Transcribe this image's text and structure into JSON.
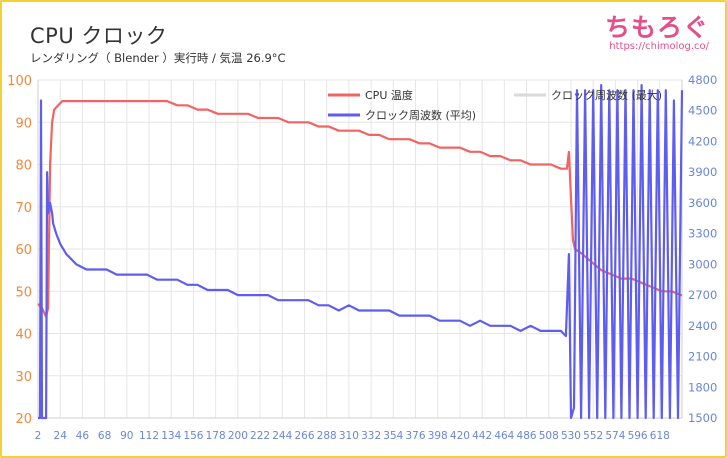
{
  "header": {
    "title": "CPU クロック",
    "subtitle": "レンダリング（ Blender ）実行時 / 気温 26.9°C"
  },
  "watermark": {
    "logo": "ちもろぐ",
    "url": "https://chimolog.co/"
  },
  "colors": {
    "temp": "#f26363",
    "clock_avg": "#5f5cf0",
    "clock_max": "#d9d9d9",
    "left_axis": "#f0893c",
    "right_axis": "#6a86d6",
    "grid": "#e6e6e6"
  },
  "chart_data": {
    "type": "line",
    "xlim": [
      2,
      640
    ],
    "x_ticks": [
      2,
      24,
      46,
      68,
      90,
      112,
      134,
      156,
      178,
      200,
      222,
      244,
      266,
      288,
      310,
      332,
      354,
      376,
      398,
      420,
      442,
      464,
      486,
      508,
      530,
      552,
      574,
      596,
      618
    ],
    "y_left": {
      "label": "",
      "ylim": [
        20,
        100
      ],
      "ticks": [
        20,
        30,
        40,
        50,
        60,
        70,
        80,
        90,
        100
      ]
    },
    "y_right": {
      "label": "",
      "ylim": [
        1500,
        4800
      ],
      "ticks": [
        1500,
        1800,
        2100,
        2400,
        2700,
        3000,
        3300,
        3600,
        3900,
        4200,
        4500,
        4800
      ]
    },
    "legend_position": "top-right",
    "grid": true,
    "series": [
      {
        "name": "CPU 温度",
        "axis": "left",
        "x": [
          2,
          6,
          10,
          12,
          14,
          16,
          18,
          22,
          26,
          30,
          40,
          50,
          60,
          70,
          80,
          90,
          100,
          110,
          120,
          130,
          140,
          150,
          160,
          170,
          180,
          190,
          200,
          210,
          220,
          230,
          240,
          250,
          260,
          270,
          280,
          290,
          300,
          310,
          320,
          330,
          340,
          350,
          360,
          370,
          380,
          390,
          400,
          410,
          420,
          430,
          440,
          450,
          460,
          470,
          480,
          490,
          500,
          510,
          520,
          526,
          528,
          530,
          532,
          534,
          540,
          550,
          560,
          570,
          580,
          590,
          600,
          610,
          620,
          630,
          640
        ],
        "values": [
          47,
          46,
          44,
          46,
          80,
          90,
          93,
          94,
          95,
          95,
          95,
          95,
          95,
          95,
          95,
          95,
          95,
          95,
          95,
          95,
          94,
          94,
          93,
          93,
          92,
          92,
          92,
          92,
          91,
          91,
          91,
          90,
          90,
          90,
          89,
          89,
          88,
          88,
          88,
          87,
          87,
          86,
          86,
          86,
          85,
          85,
          84,
          84,
          84,
          83,
          83,
          82,
          82,
          81,
          81,
          80,
          80,
          80,
          79,
          79,
          83,
          72,
          62,
          60,
          59,
          57,
          55,
          54,
          53,
          53,
          52,
          51,
          50,
          50,
          49
        ]
      },
      {
        "name": "クロック周波数 (平均)",
        "axis": "right",
        "x": [
          2,
          4,
          5,
          6,
          7,
          8,
          10,
          11,
          12,
          13,
          14,
          16,
          17,
          20,
          24,
          30,
          40,
          50,
          60,
          70,
          80,
          90,
          100,
          110,
          120,
          130,
          140,
          150,
          160,
          170,
          180,
          190,
          200,
          210,
          220,
          230,
          240,
          250,
          260,
          270,
          280,
          290,
          300,
          310,
          320,
          330,
          340,
          350,
          360,
          370,
          380,
          390,
          400,
          410,
          420,
          430,
          440,
          450,
          460,
          470,
          480,
          490,
          500,
          510,
          520,
          525,
          528,
          530,
          533,
          536,
          540,
          544,
          548,
          552,
          556,
          560,
          564,
          568,
          572,
          576,
          580,
          584,
          588,
          592,
          596,
          600,
          604,
          608,
          612,
          616,
          620,
          624,
          628,
          632,
          636,
          640
        ],
        "values": [
          1500,
          1500,
          4600,
          1500,
          1500,
          1500,
          1500,
          3900,
          3500,
          3600,
          3600,
          3500,
          3400,
          3300,
          3200,
          3100,
          3000,
          2950,
          2950,
          2950,
          2900,
          2900,
          2900,
          2900,
          2850,
          2850,
          2850,
          2800,
          2800,
          2750,
          2750,
          2750,
          2700,
          2700,
          2700,
          2700,
          2650,
          2650,
          2650,
          2650,
          2600,
          2600,
          2550,
          2600,
          2550,
          2550,
          2550,
          2550,
          2500,
          2500,
          2500,
          2500,
          2450,
          2450,
          2450,
          2400,
          2450,
          2400,
          2400,
          2400,
          2350,
          2400,
          2350,
          2350,
          2350,
          2300,
          3100,
          1500,
          1600,
          4700,
          1500,
          4700,
          1500,
          4700,
          1500,
          4750,
          1500,
          4700,
          1500,
          4700,
          1500,
          4700,
          1500,
          4700,
          1500,
          4750,
          1500,
          4700,
          1500,
          4700,
          1500,
          4700,
          1500,
          4600,
          1500,
          4700
        ]
      },
      {
        "name": "クロック周波数 (最大)",
        "axis": "right",
        "x": [],
        "values": []
      }
    ]
  }
}
